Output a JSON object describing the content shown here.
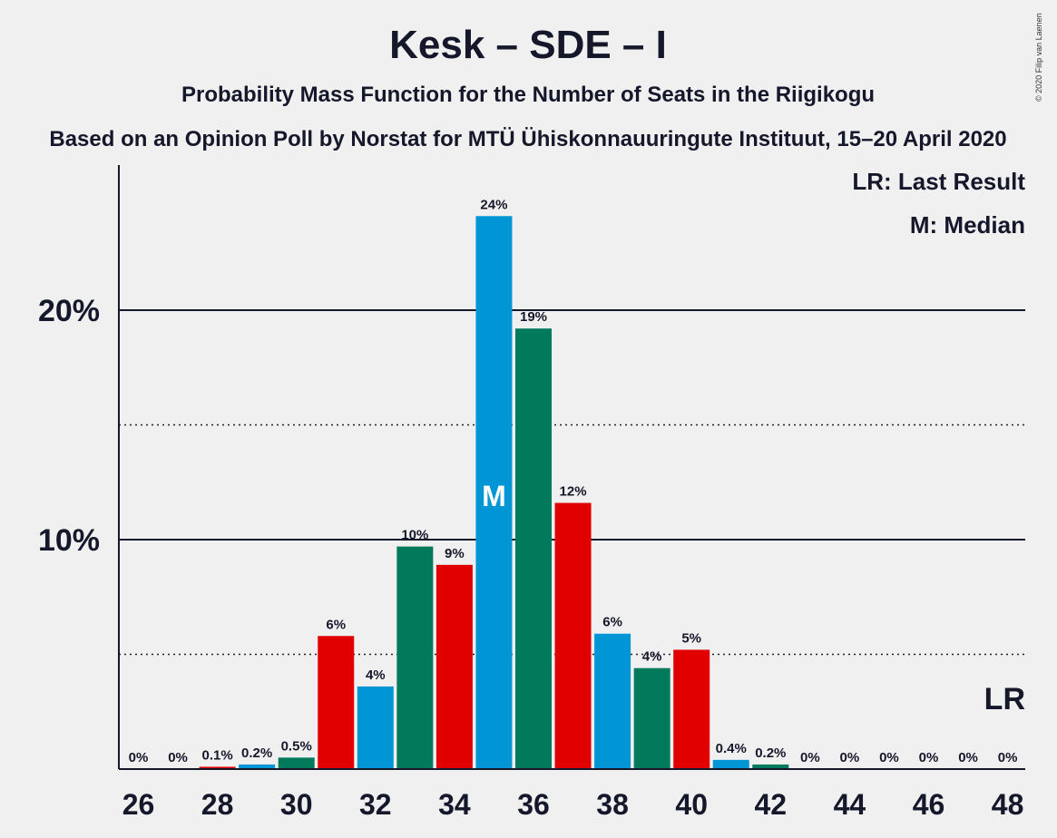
{
  "chart_data": {
    "type": "bar",
    "title": "Kesk – SDE – I",
    "subtitle": "Probability Mass Function for the Number of Seats in the Riigikogu",
    "subtitle2": "Based on an Opinion Poll by Norstat for MTÜ Ühiskonnauuringute Instituut, 15–20 April 2020",
    "copyright": "© 2020 Filip van Laenen",
    "x": [
      26,
      27,
      28,
      29,
      30,
      31,
      32,
      33,
      34,
      35,
      36,
      37,
      38,
      39,
      40,
      41,
      42,
      43,
      44,
      45,
      46,
      47,
      48
    ],
    "values": [
      0,
      0,
      0.1,
      0.2,
      0.5,
      5.8,
      3.6,
      9.7,
      8.9,
      24.1,
      19.2,
      11.6,
      5.9,
      4.4,
      5.2,
      0.4,
      0.2,
      0,
      0,
      0,
      0,
      0,
      0
    ],
    "labels": [
      "0%",
      "0%",
      "0.1%",
      "0.2%",
      "0.5%",
      "6%",
      "4%",
      "10%",
      "9%",
      "24%",
      "19%",
      "12%",
      "6%",
      "4%",
      "5%",
      "0.4%",
      "0.2%",
      "0%",
      "0%",
      "0%",
      "0%",
      "0%",
      "0%"
    ],
    "colors": [
      "#0096d6",
      "#007a5a",
      "#e00000"
    ],
    "x_tick_labels": [
      "26",
      "28",
      "30",
      "32",
      "34",
      "36",
      "38",
      "40",
      "42",
      "44",
      "46",
      "48"
    ],
    "y_tick_labels": [
      "10%",
      "20%"
    ],
    "ylim": [
      0,
      26.5
    ],
    "gridlines_solid": [
      10,
      20
    ],
    "gridlines_dotted": [
      5,
      15
    ],
    "median_seat": 35,
    "median_label": "M",
    "last_result_seat": 48,
    "last_result_label": "LR",
    "legend": [
      "LR: Last Result",
      "M: Median"
    ],
    "legend_position": "top-right"
  }
}
